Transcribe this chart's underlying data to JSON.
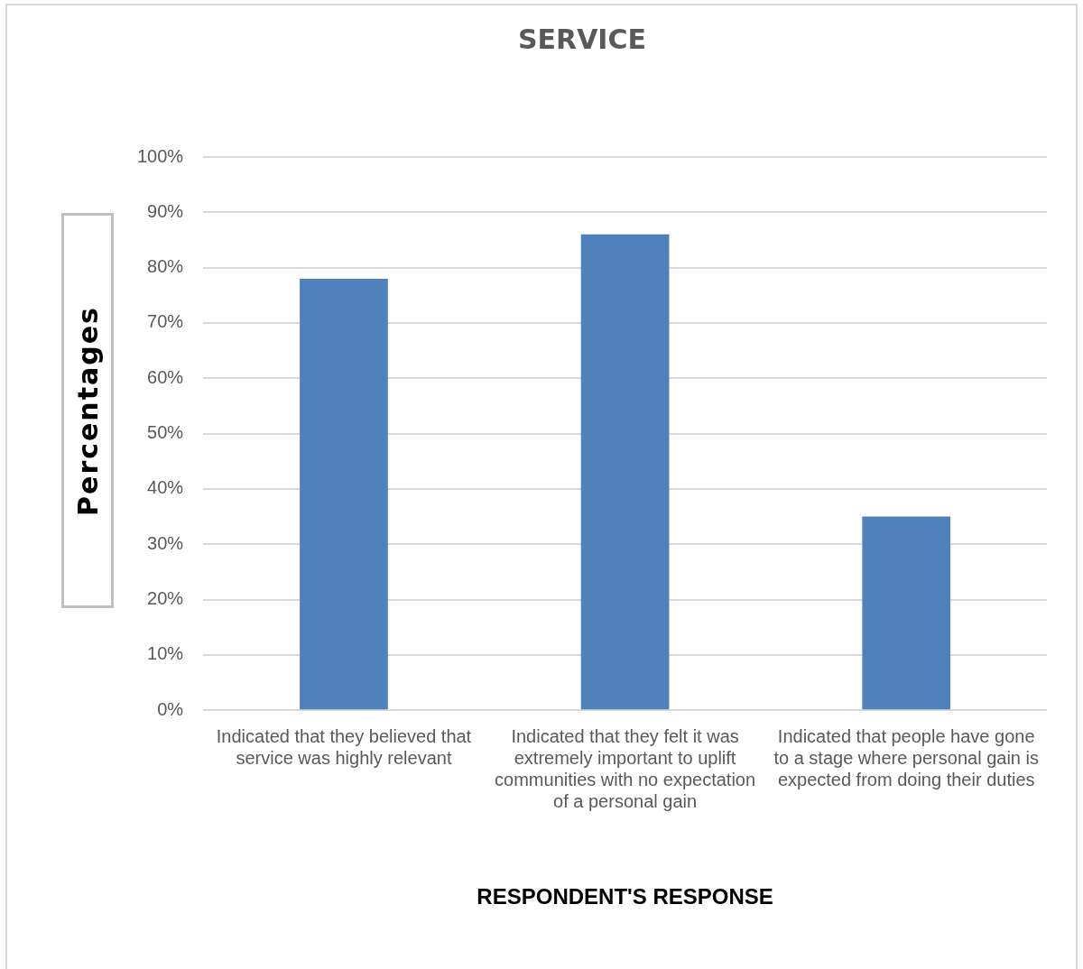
{
  "chart_data": {
    "type": "bar",
    "title": "SERVICE",
    "xlabel": "RESPONDENT'S RESPONSE",
    "ylabel": "Percentages",
    "categories": [
      "Indicated that they believed that service was highly relevant",
      "Indicated that they felt it was extremely important to uplift communities with no expectation of a personal gain",
      "Indicated that people have gone to a stage where personal gain is expected from doing their duties"
    ],
    "values": [
      78,
      86,
      35
    ],
    "color": "#4f81bd",
    "ylim": [
      0,
      100
    ],
    "yticks": [
      {
        "value": 0,
        "label": "0%"
      },
      {
        "value": 10,
        "label": "10%"
      },
      {
        "value": 20,
        "label": "20%"
      },
      {
        "value": 30,
        "label": "30%"
      },
      {
        "value": 40,
        "label": "40%"
      },
      {
        "value": 50,
        "label": "50%"
      },
      {
        "value": 60,
        "label": "60%"
      },
      {
        "value": 70,
        "label": "70%"
      },
      {
        "value": 80,
        "label": "80%"
      },
      {
        "value": 90,
        "label": "90%"
      },
      {
        "value": 100,
        "label": "100%"
      }
    ],
    "grid": "y",
    "legend": false
  }
}
